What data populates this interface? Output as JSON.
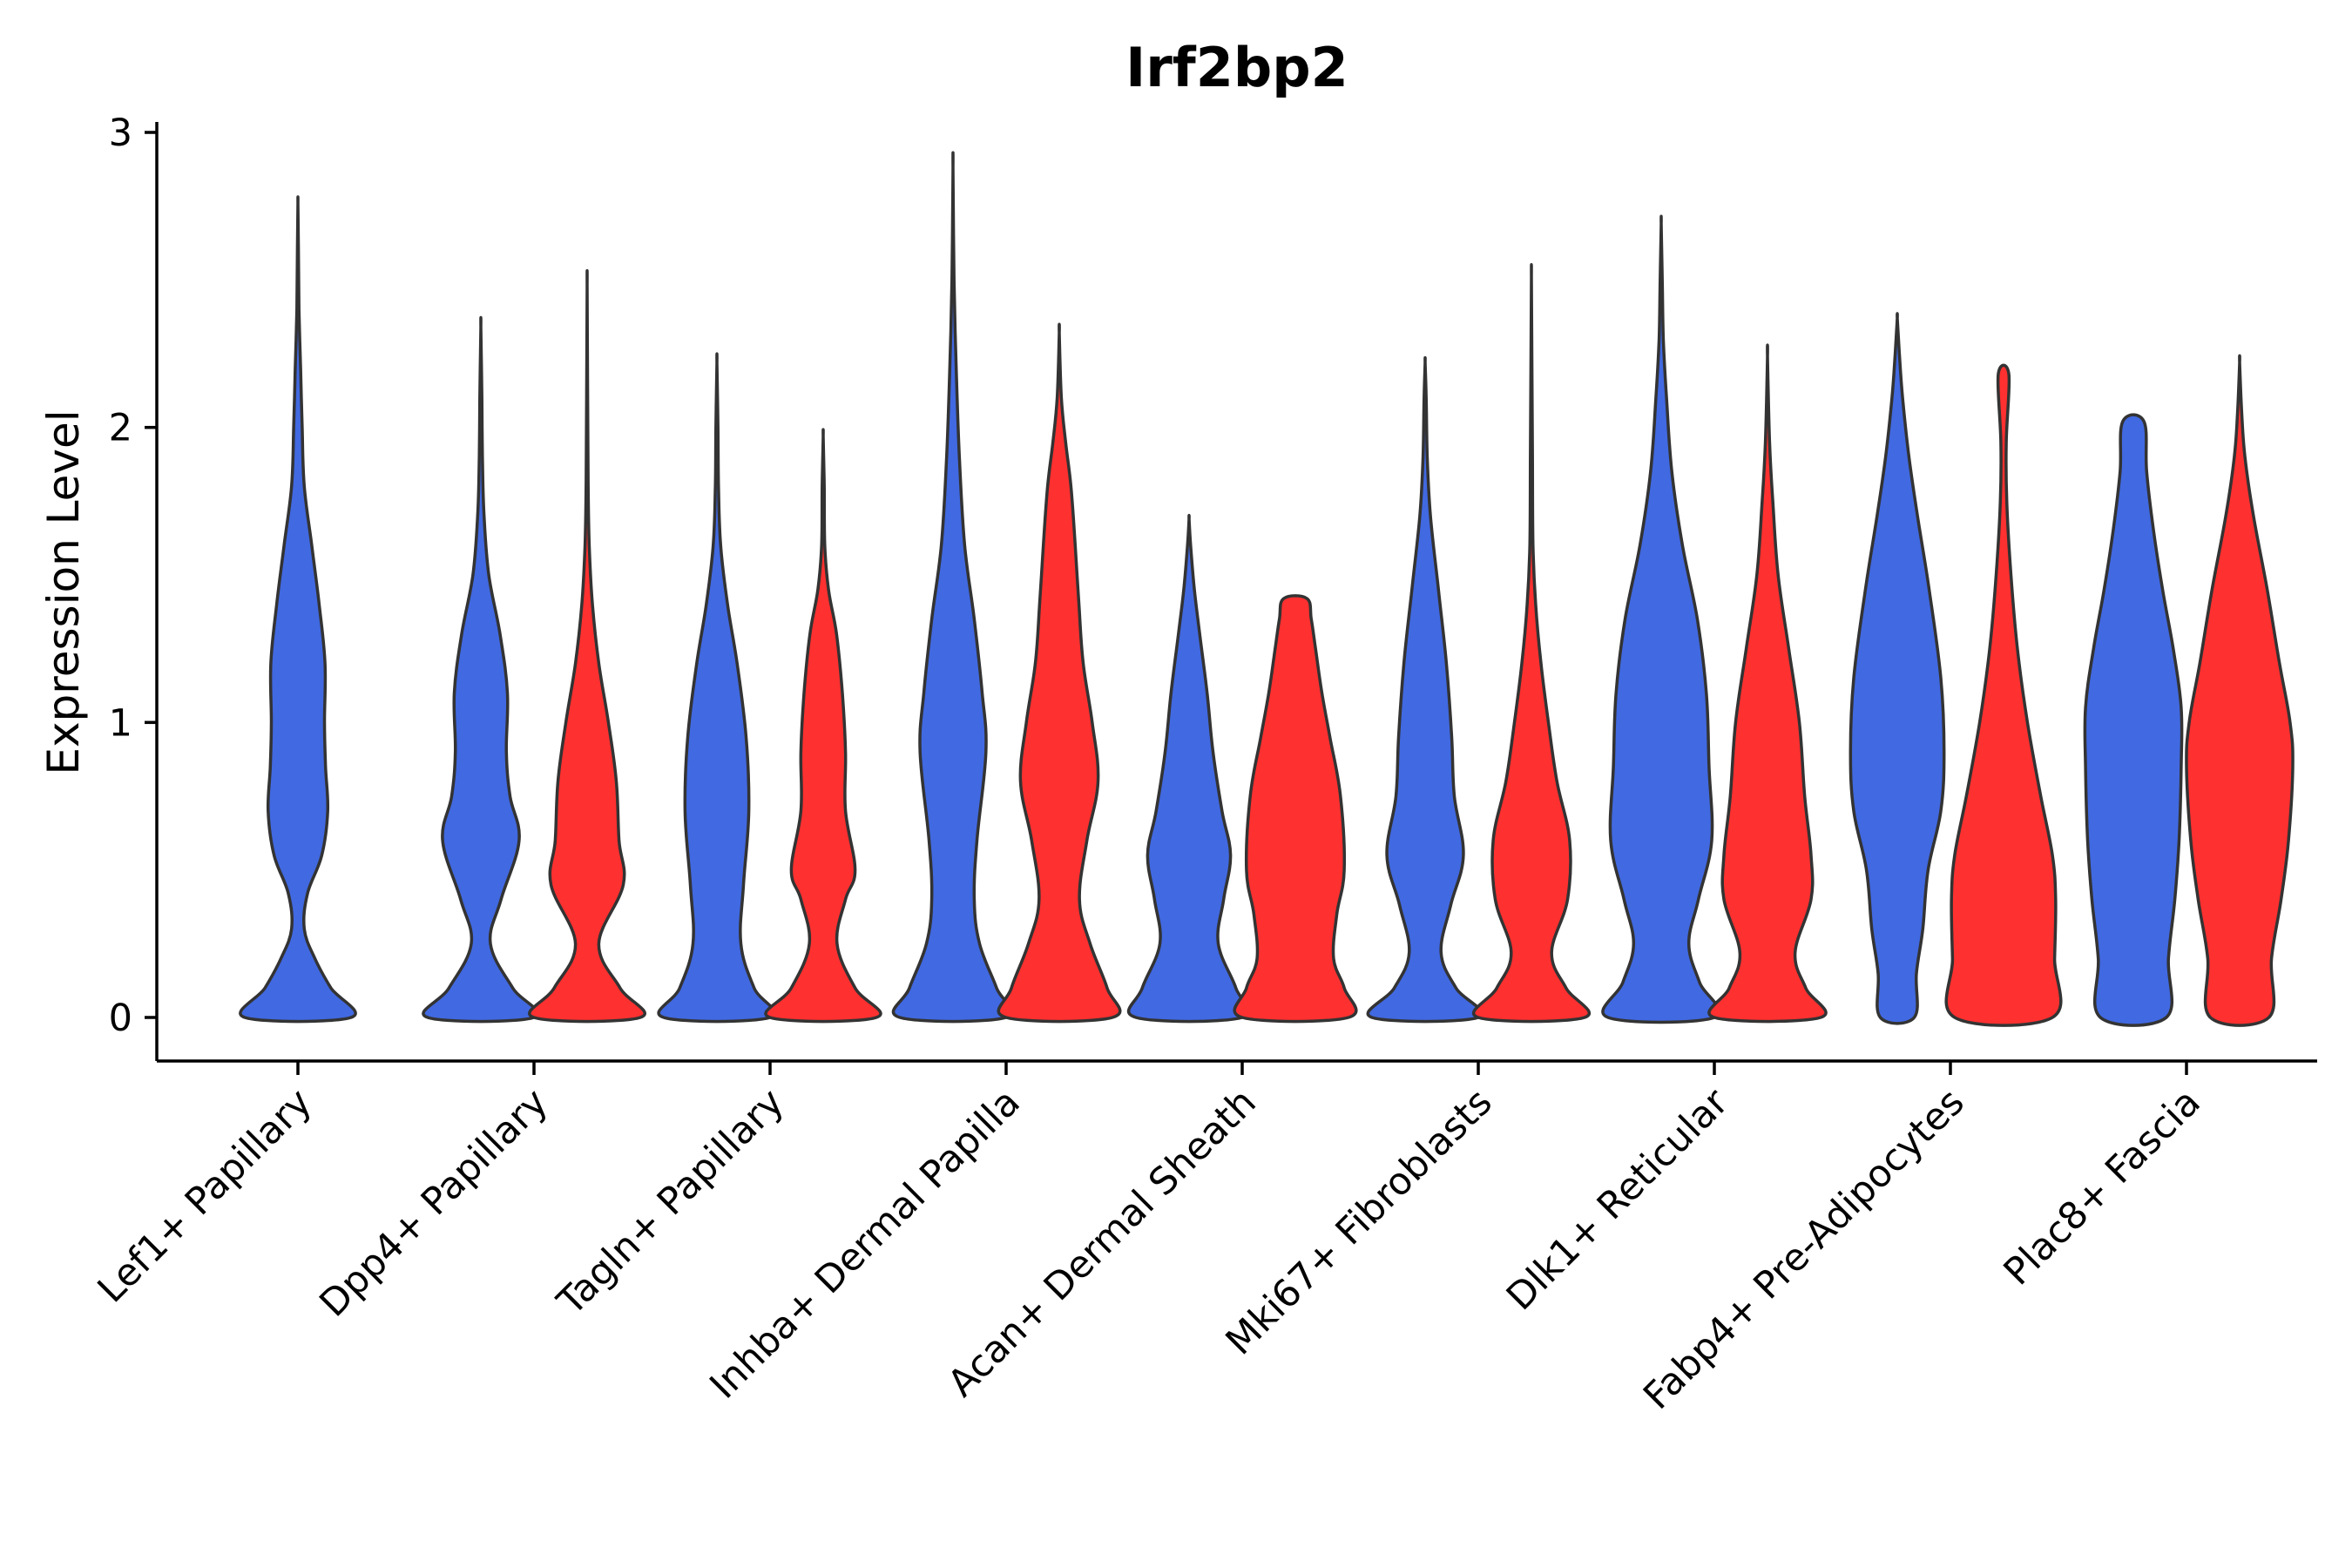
{
  "chart_data": {
    "type": "violin",
    "title": "Irf2bp2",
    "xlabel": "",
    "ylabel": "Expression Level",
    "ylim": [
      -0.15,
      3.0
    ],
    "yticks": [
      0,
      1,
      2,
      3
    ],
    "ytick_labels": [
      "0",
      "1",
      "2",
      "3"
    ],
    "grid": false,
    "legend": "none",
    "series": [
      {
        "name": "group-1",
        "color": "#4169E1"
      },
      {
        "name": "group-2",
        "color": "#FF3030"
      }
    ],
    "categories": [
      "Lef1+ Papillary",
      "Dpp4+ Papillary",
      "Tagln+ Papillary",
      "Inhba+ Dermal Papilla",
      "Acan+ Dermal Sheath",
      "Mki67+ Fibroblasts",
      "Dlk1+ Reticular",
      "Fabp4+ Pre-Adipocytes",
      "Plac8+ Fascia"
    ],
    "violins": [
      {
        "category": "Lef1+ Papillary",
        "series": "group-1",
        "color": "#4169E1",
        "min": 0,
        "max": 2.76,
        "profile": [
          [
            0,
            1.0
          ],
          [
            0.1,
            0.62
          ],
          [
            0.2,
            0.32
          ],
          [
            0.3,
            0.12
          ],
          [
            0.42,
            0.18
          ],
          [
            0.55,
            0.45
          ],
          [
            0.7,
            0.56
          ],
          [
            0.85,
            0.52
          ],
          [
            1.0,
            0.5
          ],
          [
            1.2,
            0.51
          ],
          [
            1.4,
            0.4
          ],
          [
            1.6,
            0.26
          ],
          [
            1.8,
            0.12
          ],
          [
            2.0,
            0.08
          ],
          [
            2.2,
            0.05
          ],
          [
            2.4,
            0.02
          ],
          [
            2.6,
            0.01
          ],
          [
            2.76,
            0.0
          ]
        ]
      },
      {
        "category": "Dpp4+ Papillary",
        "series": "group-1",
        "color": "#4169E1",
        "min": 0,
        "max": 2.34,
        "profile": [
          [
            0,
            1.0
          ],
          [
            0.1,
            0.6
          ],
          [
            0.25,
            0.18
          ],
          [
            0.4,
            0.38
          ],
          [
            0.6,
            0.72
          ],
          [
            0.75,
            0.55
          ],
          [
            0.9,
            0.48
          ],
          [
            1.1,
            0.5
          ],
          [
            1.3,
            0.36
          ],
          [
            1.5,
            0.15
          ],
          [
            1.7,
            0.06
          ],
          [
            1.9,
            0.03
          ],
          [
            2.1,
            0.02
          ],
          [
            2.34,
            0.0
          ]
        ]
      },
      {
        "category": "Dpp4+ Papillary",
        "series": "group-2",
        "color": "#FF3030",
        "min": 0,
        "max": 2.48,
        "profile": [
          [
            0,
            1.0
          ],
          [
            0.1,
            0.62
          ],
          [
            0.25,
            0.22
          ],
          [
            0.45,
            0.68
          ],
          [
            0.6,
            0.6
          ],
          [
            0.8,
            0.55
          ],
          [
            1.0,
            0.4
          ],
          [
            1.2,
            0.22
          ],
          [
            1.4,
            0.1
          ],
          [
            1.6,
            0.04
          ],
          [
            1.8,
            0.02
          ],
          [
            2.1,
            0.01
          ],
          [
            2.48,
            0.0
          ]
        ]
      },
      {
        "category": "Tagln+ Papillary",
        "series": "group-1",
        "color": "#4169E1",
        "min": 0,
        "max": 2.22,
        "profile": [
          [
            0,
            1.0
          ],
          [
            0.1,
            0.7
          ],
          [
            0.25,
            0.45
          ],
          [
            0.45,
            0.5
          ],
          [
            0.7,
            0.6
          ],
          [
            0.95,
            0.55
          ],
          [
            1.2,
            0.38
          ],
          [
            1.4,
            0.2
          ],
          [
            1.6,
            0.07
          ],
          [
            1.8,
            0.03
          ],
          [
            2.0,
            0.02
          ],
          [
            2.22,
            0.0
          ]
        ]
      },
      {
        "category": "Tagln+ Papillary",
        "series": "group-2",
        "color": "#FF3030",
        "min": 0,
        "max": 1.97,
        "profile": [
          [
            0,
            1.0
          ],
          [
            0.1,
            0.6
          ],
          [
            0.25,
            0.26
          ],
          [
            0.4,
            0.42
          ],
          [
            0.5,
            0.6
          ],
          [
            0.7,
            0.42
          ],
          [
            0.9,
            0.42
          ],
          [
            1.1,
            0.36
          ],
          [
            1.3,
            0.25
          ],
          [
            1.45,
            0.1
          ],
          [
            1.6,
            0.03
          ],
          [
            1.8,
            0.02
          ],
          [
            1.97,
            0.0
          ]
        ]
      },
      {
        "category": "Inhba+ Dermal Papilla",
        "series": "group-1",
        "color": "#4169E1",
        "min": 0,
        "max": 2.88,
        "profile": [
          [
            0,
            1.0
          ],
          [
            0.1,
            0.82
          ],
          [
            0.25,
            0.5
          ],
          [
            0.4,
            0.4
          ],
          [
            0.6,
            0.45
          ],
          [
            0.9,
            0.62
          ],
          [
            1.1,
            0.55
          ],
          [
            1.35,
            0.4
          ],
          [
            1.6,
            0.22
          ],
          [
            1.9,
            0.12
          ],
          [
            2.2,
            0.06
          ],
          [
            2.5,
            0.02
          ],
          [
            2.88,
            0.0
          ]
        ]
      },
      {
        "category": "Inhba+ Dermal Papilla",
        "series": "group-2",
        "color": "#FF3030",
        "min": 0,
        "max": 2.32,
        "profile": [
          [
            0,
            1.0
          ],
          [
            0.1,
            0.9
          ],
          [
            0.25,
            0.58
          ],
          [
            0.4,
            0.38
          ],
          [
            0.6,
            0.52
          ],
          [
            0.8,
            0.73
          ],
          [
            1.0,
            0.62
          ],
          [
            1.2,
            0.45
          ],
          [
            1.4,
            0.37
          ],
          [
            1.6,
            0.3
          ],
          [
            1.8,
            0.22
          ],
          [
            1.95,
            0.12
          ],
          [
            2.1,
            0.04
          ],
          [
            2.32,
            0.0
          ]
        ]
      },
      {
        "category": "Acan+ Dermal Sheath",
        "series": "group-1",
        "color": "#4169E1",
        "min": 0,
        "max": 1.69,
        "profile": [
          [
            0,
            1.0
          ],
          [
            0.1,
            0.88
          ],
          [
            0.25,
            0.55
          ],
          [
            0.4,
            0.65
          ],
          [
            0.55,
            0.78
          ],
          [
            0.7,
            0.62
          ],
          [
            0.9,
            0.45
          ],
          [
            1.1,
            0.34
          ],
          [
            1.3,
            0.2
          ],
          [
            1.45,
            0.1
          ],
          [
            1.6,
            0.03
          ],
          [
            1.69,
            0.0
          ]
        ]
      },
      {
        "category": "Acan+ Dermal Sheath",
        "series": "group-2",
        "color": "#FF3030",
        "min": 0,
        "max": 1.42,
        "profile": [
          [
            0,
            1.0
          ],
          [
            0.1,
            0.92
          ],
          [
            0.2,
            0.72
          ],
          [
            0.35,
            0.78
          ],
          [
            0.5,
            0.92
          ],
          [
            0.75,
            0.85
          ],
          [
            0.95,
            0.65
          ],
          [
            1.1,
            0.5
          ],
          [
            1.25,
            0.38
          ],
          [
            1.35,
            0.3
          ],
          [
            1.42,
            0.22
          ]
        ]
      },
      {
        "category": "Mki67+ Fibroblasts",
        "series": "group-1",
        "color": "#4169E1",
        "min": 0,
        "max": 2.22,
        "profile": [
          [
            0,
            1.0
          ],
          [
            0.1,
            0.58
          ],
          [
            0.22,
            0.3
          ],
          [
            0.38,
            0.48
          ],
          [
            0.55,
            0.72
          ],
          [
            0.75,
            0.55
          ],
          [
            0.95,
            0.5
          ],
          [
            1.2,
            0.4
          ],
          [
            1.45,
            0.25
          ],
          [
            1.7,
            0.1
          ],
          [
            1.9,
            0.04
          ],
          [
            2.1,
            0.02
          ],
          [
            2.22,
            0.0
          ]
        ]
      },
      {
        "category": "Mki67+ Fibroblasts",
        "series": "group-2",
        "color": "#FF3030",
        "min": 0,
        "max": 2.51,
        "profile": [
          [
            0,
            1.0
          ],
          [
            0.1,
            0.65
          ],
          [
            0.22,
            0.38
          ],
          [
            0.4,
            0.68
          ],
          [
            0.6,
            0.72
          ],
          [
            0.8,
            0.48
          ],
          [
            1.0,
            0.32
          ],
          [
            1.2,
            0.18
          ],
          [
            1.4,
            0.08
          ],
          [
            1.6,
            0.03
          ],
          [
            1.9,
            0.02
          ],
          [
            2.2,
            0.01
          ],
          [
            2.51,
            0.0
          ]
        ]
      },
      {
        "category": "Dlk1+ Reticular",
        "series": "group-1",
        "color": "#4169E1",
        "min": 0,
        "max": 2.69,
        "profile": [
          [
            0,
            1.0
          ],
          [
            0.12,
            0.72
          ],
          [
            0.25,
            0.52
          ],
          [
            0.4,
            0.7
          ],
          [
            0.6,
            0.95
          ],
          [
            0.85,
            0.9
          ],
          [
            1.1,
            0.85
          ],
          [
            1.35,
            0.68
          ],
          [
            1.6,
            0.4
          ],
          [
            1.85,
            0.2
          ],
          [
            2.1,
            0.1
          ],
          [
            2.3,
            0.04
          ],
          [
            2.5,
            0.02
          ],
          [
            2.69,
            0.0
          ]
        ]
      },
      {
        "category": "Dlk1+ Reticular",
        "series": "group-2",
        "color": "#FF3030",
        "min": 0,
        "max": 2.24,
        "profile": [
          [
            0,
            1.0
          ],
          [
            0.1,
            0.72
          ],
          [
            0.22,
            0.52
          ],
          [
            0.4,
            0.82
          ],
          [
            0.55,
            0.82
          ],
          [
            0.75,
            0.7
          ],
          [
            1.0,
            0.6
          ],
          [
            1.25,
            0.4
          ],
          [
            1.5,
            0.2
          ],
          [
            1.75,
            0.1
          ],
          [
            1.95,
            0.04
          ],
          [
            2.24,
            0.0
          ]
        ]
      },
      {
        "category": "Fabp4+ Pre-Adipocytes",
        "series": "group-1",
        "color": "#4169E1",
        "min": 0,
        "max": 2.37,
        "profile": [
          [
            0,
            0.32
          ],
          [
            0.15,
            0.36
          ],
          [
            0.3,
            0.48
          ],
          [
            0.5,
            0.58
          ],
          [
            0.7,
            0.82
          ],
          [
            0.9,
            0.88
          ],
          [
            1.15,
            0.82
          ],
          [
            1.45,
            0.6
          ],
          [
            1.7,
            0.38
          ],
          [
            1.9,
            0.22
          ],
          [
            2.1,
            0.1
          ],
          [
            2.25,
            0.04
          ],
          [
            2.37,
            0.0
          ]
        ]
      },
      {
        "category": "Fabp4+ Pre-Adipocytes",
        "series": "group-2",
        "color": "#FF3030",
        "min": 0,
        "max": 2.18,
        "profile": [
          [
            0,
            0.92
          ],
          [
            0.2,
            0.96
          ],
          [
            0.4,
            0.98
          ],
          [
            0.55,
            0.92
          ],
          [
            0.75,
            0.7
          ],
          [
            1.0,
            0.45
          ],
          [
            1.25,
            0.26
          ],
          [
            1.5,
            0.14
          ],
          [
            1.75,
            0.06
          ],
          [
            1.95,
            0.05
          ],
          [
            2.18,
            0.1
          ]
        ]
      },
      {
        "category": "Plac8+ Fascia",
        "series": "group-1",
        "color": "#4169E1",
        "min": 0,
        "max": 2.02,
        "profile": [
          [
            0,
            0.62
          ],
          [
            0.2,
            0.66
          ],
          [
            0.4,
            0.78
          ],
          [
            0.6,
            0.86
          ],
          [
            0.85,
            0.9
          ],
          [
            1.05,
            0.9
          ],
          [
            1.25,
            0.75
          ],
          [
            1.45,
            0.55
          ],
          [
            1.65,
            0.38
          ],
          [
            1.85,
            0.25
          ],
          [
            2.02,
            0.2
          ]
        ]
      },
      {
        "category": "Plac8+ Fascia",
        "series": "group-2",
        "color": "#FF3030",
        "min": 0,
        "max": 2.22,
        "profile": [
          [
            0,
            0.55
          ],
          [
            0.2,
            0.6
          ],
          [
            0.4,
            0.78
          ],
          [
            0.6,
            0.92
          ],
          [
            0.85,
            1.0
          ],
          [
            1.0,
            0.95
          ],
          [
            1.2,
            0.75
          ],
          [
            1.45,
            0.52
          ],
          [
            1.7,
            0.26
          ],
          [
            1.9,
            0.1
          ],
          [
            2.05,
            0.04
          ],
          [
            2.22,
            0.0
          ]
        ]
      }
    ]
  }
}
